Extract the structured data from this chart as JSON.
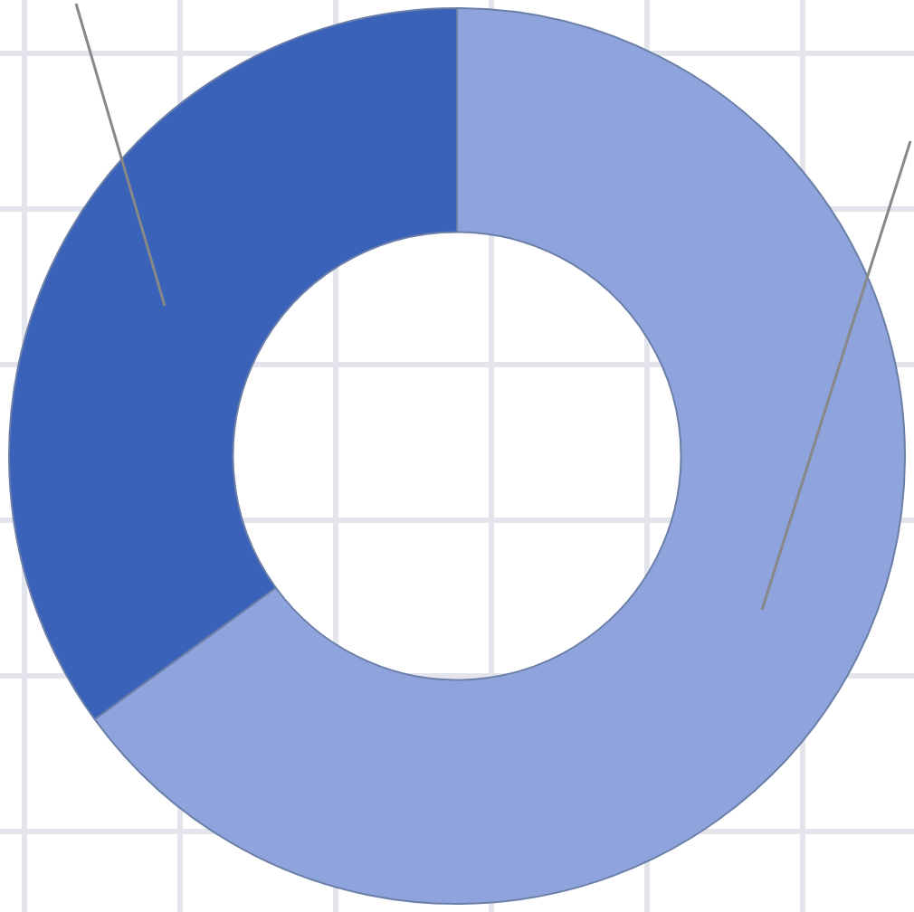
{
  "chart_data": {
    "type": "donut",
    "categories": [
      null,
      null
    ],
    "values": [
      65,
      35
    ],
    "colors": [
      "#8fa3dc",
      "#3a62b8"
    ],
    "legend": false
  }
}
